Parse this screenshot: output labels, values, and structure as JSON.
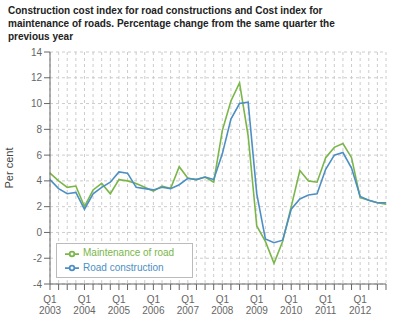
{
  "chart_data": {
    "type": "line",
    "title": "Construction cost index for road constructions and Cost index for\nmaintenance of roads. Percentage change from the same quarter the\nprevious year",
    "ylabel": "Per cent",
    "categories": [
      "Q1\n2003",
      null,
      null,
      null,
      "Q1\n2004",
      null,
      null,
      null,
      "Q1\n2005",
      null,
      null,
      null,
      "Q1\n2006",
      null,
      null,
      null,
      "Q1\n2007",
      null,
      null,
      null,
      "Q1\n2008",
      null,
      null,
      null,
      "Q1\n2009",
      null,
      null,
      null,
      "Q1\n2010",
      null,
      null,
      null,
      "Q1\n2011",
      null,
      null,
      null,
      "Q1\n2012",
      null,
      null,
      null
    ],
    "series": [
      {
        "name": "Maintenance of road",
        "color": "#7ab648",
        "values": [
          4.6,
          4.0,
          3.5,
          3.6,
          2.0,
          3.3,
          3.8,
          3.0,
          4.1,
          4.0,
          3.8,
          3.5,
          3.2,
          3.6,
          3.4,
          5.1,
          4.2,
          4.1,
          4.3,
          3.9,
          7.9,
          10.2,
          11.6,
          7.5,
          0.5,
          -0.7,
          -2.4,
          -0.7,
          2.0,
          4.8,
          4.0,
          3.9,
          5.8,
          6.6,
          6.9,
          5.8,
          2.7,
          2.5,
          2.3,
          2.2
        ]
      },
      {
        "name": "Road construction",
        "color": "#4d8fc4",
        "values": [
          4.1,
          3.4,
          3.0,
          3.1,
          1.8,
          3.0,
          3.5,
          3.9,
          4.7,
          4.6,
          3.5,
          3.4,
          3.3,
          3.5,
          3.4,
          3.7,
          4.2,
          4.1,
          4.3,
          4.1,
          6.1,
          8.8,
          10.0,
          10.1,
          3.0,
          -0.5,
          -0.8,
          -0.6,
          1.8,
          2.6,
          2.9,
          3.0,
          4.9,
          6.0,
          6.2,
          5.0,
          2.8,
          2.5,
          2.3,
          2.3
        ]
      }
    ],
    "ylim": [
      -4,
      14
    ],
    "yticks": [
      -4,
      -2,
      0,
      2,
      4,
      6,
      8,
      10,
      12,
      14
    ],
    "grid": true,
    "legend": "lower left"
  }
}
